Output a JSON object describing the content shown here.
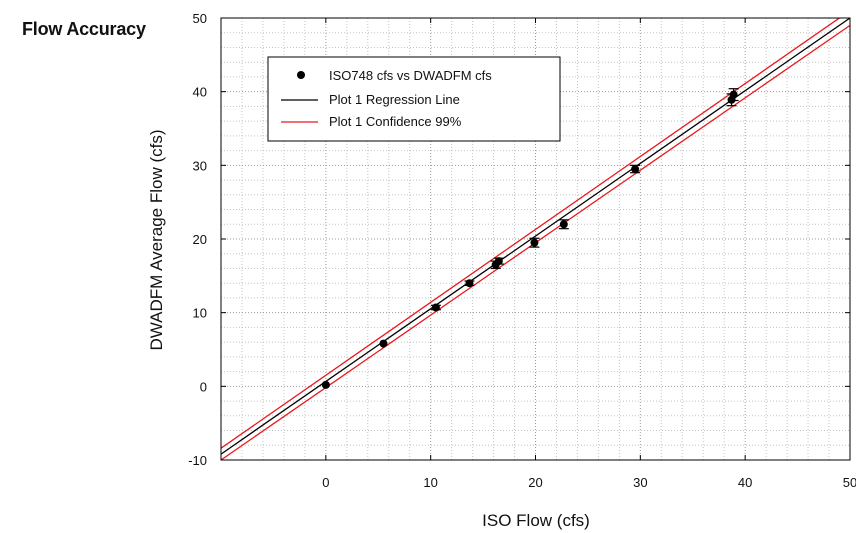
{
  "page": {
    "title": "Flow Accuracy"
  },
  "chart_data": {
    "type": "scatter",
    "title": "",
    "xlabel": "ISO Flow (cfs)",
    "ylabel": "DWADFM Average Flow (cfs)",
    "xlim": [
      -10,
      50
    ],
    "ylim": [
      -10,
      50
    ],
    "xticks": [
      0,
      10,
      20,
      30,
      40,
      50
    ],
    "yticks": [
      -10,
      0,
      10,
      20,
      30,
      40,
      50
    ],
    "xtick_labels": [
      "0",
      "10",
      "20",
      "30",
      "40",
      "50"
    ],
    "ytick_labels": [
      "-10",
      "0",
      "10",
      "20",
      "30",
      "40",
      "50"
    ],
    "grid": true,
    "legend_position": "top-left",
    "series": [
      {
        "name": "ISO748 cfs vs DWADFM cfs",
        "kind": "points",
        "color": "#000000",
        "x": [
          0.0,
          5.5,
          10.5,
          13.7,
          16.2,
          16.5,
          19.9,
          22.7,
          29.5,
          38.7,
          38.9
        ],
        "y": [
          0.2,
          5.8,
          10.7,
          14.0,
          16.5,
          17.0,
          19.5,
          22.0,
          29.5,
          38.9,
          39.6
        ],
        "err": [
          0.0,
          0.0,
          0.3,
          0.3,
          0.5,
          0.4,
          0.6,
          0.6,
          0.5,
          0.8,
          0.8
        ]
      },
      {
        "name": "Plot 1 Regression Line",
        "kind": "line",
        "color": "#000000",
        "x": [
          -10,
          50
        ],
        "y": [
          -9.2,
          50.0
        ]
      },
      {
        "name": "Plot 1 Confidence 99%",
        "kind": "band",
        "color": "#e8191e",
        "x": [
          -10,
          50
        ],
        "upper": [
          -8.4,
          51.0
        ],
        "lower": [
          -10.0,
          49.0
        ]
      }
    ]
  }
}
